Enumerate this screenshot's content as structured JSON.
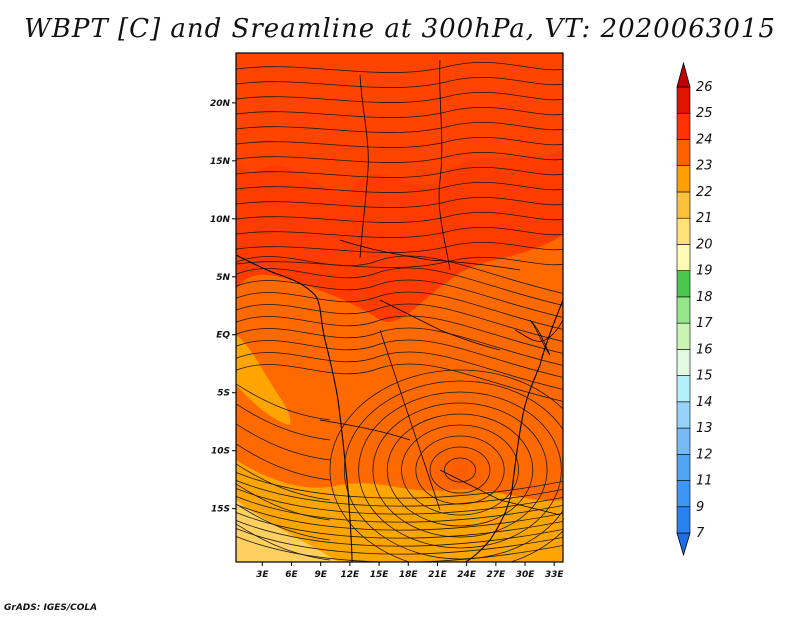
{
  "title": "WBPT [C] and Sreamline at 300hPa, VT: 2020063015",
  "credit": "GrADS: IGES/COLA",
  "map": {
    "lat_ticks": [
      "20N",
      "15N",
      "10N",
      "5N",
      "EQ",
      "5S",
      "10S",
      "15S"
    ],
    "lon_ticks": [
      "3E",
      "6E",
      "9E",
      "12E",
      "15E",
      "18E",
      "21E",
      "24E",
      "27E",
      "30E",
      "33E"
    ],
    "lat_values": [
      20,
      15,
      10,
      5,
      0,
      -5,
      -10,
      -15
    ],
    "lon_values": [
      3,
      6,
      9,
      12,
      15,
      18,
      21,
      24,
      27,
      30,
      33
    ],
    "lat_range": [
      -19.6,
      24.3
    ],
    "lon_range": [
      0.3,
      33.9
    ]
  },
  "colorbar": {
    "labels": [
      "7",
      "9",
      "11",
      "12",
      "13",
      "14",
      "15",
      "16",
      "17",
      "18",
      "19",
      "20",
      "21",
      "22",
      "23",
      "24",
      "25",
      "26"
    ],
    "colors": [
      "#1e6ee6",
      "#2882f0",
      "#3c96f5",
      "#50a5f5",
      "#78b9f8",
      "#96d2fa",
      "#b4f0fa",
      "#e1fae1",
      "#c8f5b4",
      "#96e68c",
      "#4bc84b",
      "#fffab4",
      "#ffe178",
      "#ffc03c",
      "#ffa000",
      "#ff6000",
      "#ff3200",
      "#e11400",
      "#c00000"
    ]
  },
  "colors": {
    "field_high": "#ff3c00",
    "field_mid": "#ff6a00",
    "field_low": "#ffa500",
    "field_lowest": "#ffd060",
    "streamline": "#1a1a1a"
  }
}
